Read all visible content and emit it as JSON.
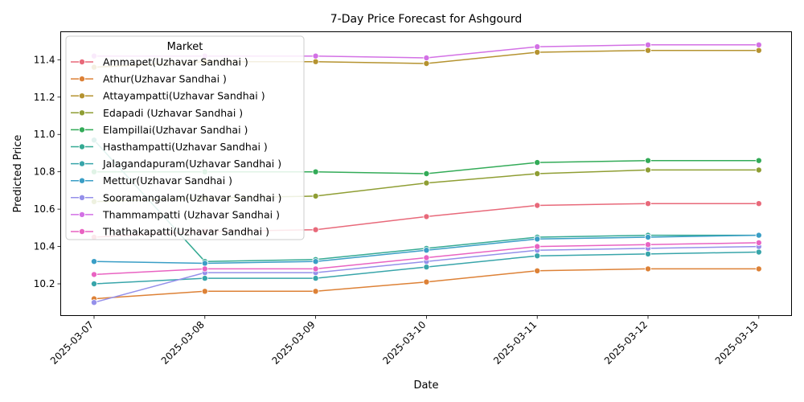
{
  "chart_data": {
    "type": "line",
    "title": "7-Day Price Forecast for Ashgourd",
    "xlabel": "Date",
    "ylabel": "Predicted Price",
    "x": [
      "2025-03-07",
      "2025-03-08",
      "2025-03-09",
      "2025-03-10",
      "2025-03-11",
      "2025-03-12",
      "2025-03-13"
    ],
    "ylim": [
      10.03,
      11.55
    ],
    "yticks": [
      "10.2",
      "10.4",
      "10.6",
      "10.8",
      "11.0",
      "11.2",
      "11.4"
    ],
    "grid": false,
    "legend": {
      "title": "Market",
      "placement": "upper-left"
    },
    "series": [
      {
        "name": "Ammapet(Uzhavar Sandhai )",
        "color": "#e8697a",
        "values": [
          10.45,
          10.48,
          10.49,
          10.56,
          10.62,
          10.63,
          10.63
        ]
      },
      {
        "name": "Athur(Uzhavar Sandhai )",
        "color": "#dd8136",
        "values": [
          10.12,
          10.16,
          10.16,
          10.21,
          10.27,
          10.28,
          10.28
        ]
      },
      {
        "name": "Attayampatti(Uzhavar Sandhai )",
        "color": "#b59330",
        "values": [
          11.36,
          11.39,
          11.39,
          11.38,
          11.44,
          11.45,
          11.45
        ]
      },
      {
        "name": "Edapadi (Uzhavar Sandhai )",
        "color": "#8f9e34",
        "values": [
          10.64,
          10.66,
          10.67,
          10.74,
          10.79,
          10.81,
          10.81
        ]
      },
      {
        "name": "Elampillai(Uzhavar Sandhai )",
        "color": "#33ab58",
        "values": [
          10.8,
          10.8,
          10.8,
          10.79,
          10.85,
          10.86,
          10.86
        ]
      },
      {
        "name": "Hasthampatti(Uzhavar Sandhai )",
        "color": "#35aa93",
        "values": [
          10.97,
          10.32,
          10.33,
          10.39,
          10.45,
          10.46,
          10.46
        ]
      },
      {
        "name": "Jalagandapuram(Uzhavar Sandhai )",
        "color": "#38a5aa",
        "values": [
          10.2,
          10.23,
          10.23,
          10.29,
          10.35,
          10.36,
          10.37
        ]
      },
      {
        "name": "Mettur(Uzhavar Sandhai )",
        "color": "#3a9ec6",
        "values": [
          10.32,
          10.31,
          10.32,
          10.38,
          10.44,
          10.45,
          10.46
        ]
      },
      {
        "name": "Sooramangalam(Uzhavar Sandhai )",
        "color": "#9590ea",
        "values": [
          10.1,
          10.26,
          10.26,
          10.32,
          10.38,
          10.39,
          10.4
        ]
      },
      {
        "name": "Thammampatti (Uzhavar Sandhai )",
        "color": "#d371e5",
        "values": [
          11.42,
          11.42,
          11.42,
          11.41,
          11.47,
          11.48,
          11.48
        ]
      },
      {
        "name": "Thathakapatti(Uzhavar Sandhai )",
        "color": "#e963c2",
        "values": [
          10.25,
          10.28,
          10.28,
          10.34,
          10.4,
          10.41,
          10.42
        ]
      }
    ]
  }
}
